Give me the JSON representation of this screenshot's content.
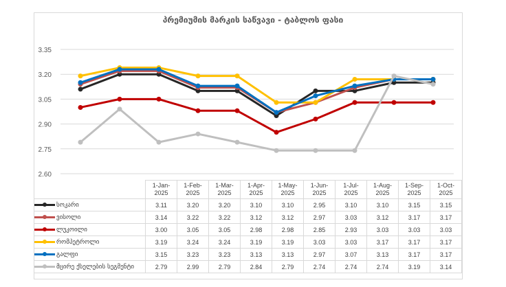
{
  "chart_data": {
    "type": "line",
    "title": "პრემიუმის მარკის საწვავი - ტაბლოს ფასი",
    "categories": [
      "1-Jan-2025",
      "1-Feb-2025",
      "1-Mar-2025",
      "1-Apr-2025",
      "1-May-2025",
      "1-Jun-2025",
      "1-Jul-2025",
      "1-Aug-2025",
      "1-Sep-2025",
      "1-Oct-2025"
    ],
    "category_lines": [
      [
        "1-Jan-",
        "2025"
      ],
      [
        "1-Feb-",
        "2025"
      ],
      [
        "1-Mar-",
        "2025"
      ],
      [
        "1-Apr-",
        "2025"
      ],
      [
        "1-May-",
        "2025"
      ],
      [
        "1-Jun-",
        "2025"
      ],
      [
        "1-Jul-",
        "2025"
      ],
      [
        "1-Aug-",
        "2025"
      ],
      [
        "1-Sep-",
        "2025"
      ],
      [
        "1-Oct-",
        "2025"
      ]
    ],
    "yticks": [
      "3.35",
      "3.20",
      "3.05",
      "2.90",
      "2.75",
      "2.60"
    ],
    "ylim": [
      2.6,
      3.35
    ],
    "grid": true,
    "legend": "data-table",
    "series": [
      {
        "name": "სოკარი",
        "color": "#262626",
        "values": [
          "3.11",
          "3.20",
          "3.20",
          "3.10",
          "3.10",
          "2.95",
          "3.10",
          "3.10",
          "3.15",
          "3.15"
        ]
      },
      {
        "name": "ვისოლი",
        "color": "#c0504d",
        "values": [
          "3.14",
          "3.22",
          "3.22",
          "3.12",
          "3.12",
          "2.97",
          "3.03",
          "3.12",
          "3.17",
          "3.17"
        ]
      },
      {
        "name": "ლუკოილი",
        "color": "#c00000",
        "values": [
          "3.00",
          "3.05",
          "3.05",
          "2.98",
          "2.98",
          "2.85",
          "2.93",
          "3.03",
          "3.03",
          "3.03"
        ]
      },
      {
        "name": "რომპეტროლი",
        "color": "#ffc000",
        "values": [
          "3.19",
          "3.24",
          "3.24",
          "3.19",
          "3.19",
          "3.03",
          "3.03",
          "3.17",
          "3.17",
          "3.17"
        ]
      },
      {
        "name": "გალფი",
        "color": "#0070c0",
        "values": [
          "3.15",
          "3.23",
          "3.23",
          "3.13",
          "3.13",
          "2.97",
          "3.07",
          "3.13",
          "3.17",
          "3.17"
        ]
      },
      {
        "name": "მცირე ქსელების სეგმენტი",
        "color": "#bfbfbf",
        "values": [
          "2.79",
          "2.99",
          "2.79",
          "2.84",
          "2.79",
          "2.74",
          "2.74",
          "2.74",
          "3.19",
          "3.14"
        ]
      }
    ]
  }
}
